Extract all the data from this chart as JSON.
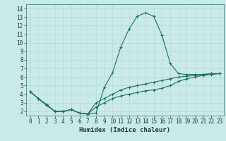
{
  "xlabel": "Humidex (Indice chaleur)",
  "background_color": "#caeaea",
  "grid_color": "#b8d8d8",
  "line_color": "#1a7060",
  "xlim": [
    -0.5,
    23.5
  ],
  "ylim": [
    1.5,
    14.5
  ],
  "xticks": [
    0,
    1,
    2,
    3,
    4,
    5,
    6,
    7,
    8,
    9,
    10,
    11,
    12,
    13,
    14,
    15,
    16,
    17,
    18,
    19,
    20,
    21,
    22,
    23
  ],
  "yticks": [
    2,
    3,
    4,
    5,
    6,
    7,
    8,
    9,
    10,
    11,
    12,
    13,
    14
  ],
  "series": [
    {
      "x": [
        0,
        1,
        2,
        3,
        4,
        5,
        6,
        7,
        8,
        9,
        10,
        11,
        12,
        13,
        14,
        15,
        16,
        17,
        18,
        19,
        20,
        21,
        22,
        23
      ],
      "y": [
        4.3,
        3.5,
        2.8,
        2.0,
        2.0,
        2.2,
        1.8,
        1.7,
        1.8,
        4.8,
        6.5,
        9.5,
        11.6,
        13.1,
        13.5,
        13.1,
        10.9,
        7.6,
        6.4,
        6.3,
        6.3,
        6.3,
        6.4,
        6.4
      ]
    },
    {
      "x": [
        0,
        1,
        2,
        3,
        4,
        5,
        6,
        7,
        8,
        9,
        10,
        11,
        12,
        13,
        14,
        15,
        16,
        17,
        18,
        19,
        20,
        21,
        22,
        23
      ],
      "y": [
        4.3,
        3.5,
        2.7,
        2.0,
        2.0,
        2.2,
        1.8,
        1.7,
        3.0,
        3.5,
        4.0,
        4.5,
        4.8,
        5.0,
        5.2,
        5.4,
        5.6,
        5.8,
        6.0,
        6.1,
        6.2,
        6.3,
        6.4,
        6.4
      ]
    },
    {
      "x": [
        0,
        1,
        2,
        3,
        4,
        5,
        6,
        7,
        8,
        9,
        10,
        11,
        12,
        13,
        14,
        15,
        16,
        17,
        18,
        19,
        20,
        21,
        22,
        23
      ],
      "y": [
        4.3,
        3.5,
        2.7,
        2.0,
        2.0,
        2.2,
        1.8,
        1.7,
        2.5,
        3.0,
        3.5,
        3.8,
        4.0,
        4.2,
        4.4,
        4.5,
        4.7,
        5.0,
        5.5,
        5.8,
        6.0,
        6.2,
        6.3,
        6.4
      ]
    }
  ],
  "tick_fontsize": 5.5,
  "xlabel_fontsize": 6.5
}
